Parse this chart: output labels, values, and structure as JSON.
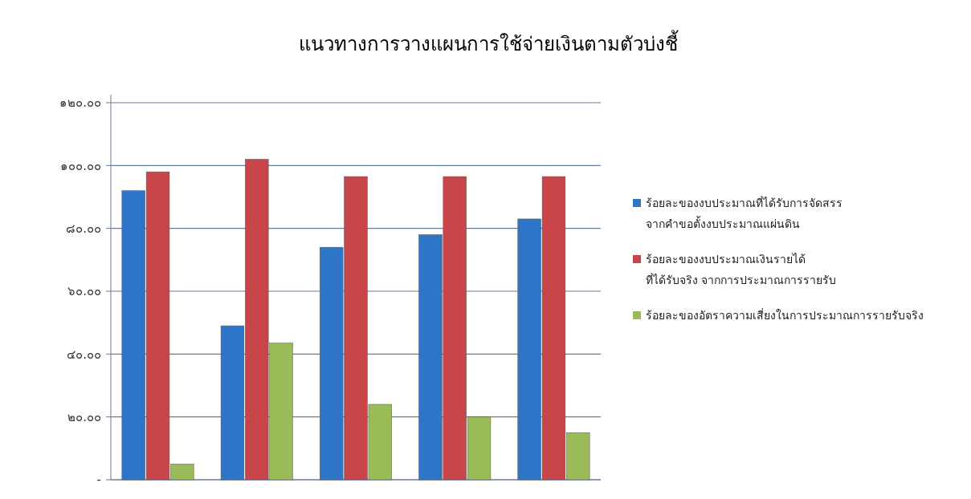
{
  "chart_data": {
    "type": "bar",
    "title": "แนวทางการวางแผนการใช้จ่ายเงินตามตัวบ่งชี้",
    "categories": [
      null,
      null,
      null,
      null,
      null
    ],
    "series": [
      {
        "name": "ร้อยละของงบประมาณที่ได้รับการจัดสรร จากคำขอตั้งงบประมาณแผ่นดิน",
        "color": "#2e75c8",
        "values": [
          92,
          49,
          74,
          78,
          83
        ]
      },
      {
        "name": "ร้อยละของงบประมาณเงินรายได้ ที่ได้รับจริง จากการประมาณการรายรับ",
        "color": "#c8464a",
        "values": [
          98,
          102,
          96.5,
          96.5,
          96.5
        ]
      },
      {
        "name": "ร้อยละของอัตราความเสี่ยงในการประมาณการรายรับจริง",
        "color": "#9bbb59",
        "values": [
          5,
          43.5,
          24,
          20,
          15
        ]
      }
    ],
    "ylim": [
      0,
      120
    ],
    "yticks": [
      {
        "value": 0,
        "label": "-"
      },
      {
        "value": 20,
        "label": "๒๐.๐๐"
      },
      {
        "value": 40,
        "label": "๔๐.๐๐"
      },
      {
        "value": 60,
        "label": "๖๐.๐๐"
      },
      {
        "value": 80,
        "label": "๘๐.๐๐"
      },
      {
        "value": 100,
        "label": "๑๐๐.๐๐"
      },
      {
        "value": 120,
        "label": "๑๒๐.๐๐"
      }
    ],
    "grid": "y",
    "legend": "right"
  }
}
